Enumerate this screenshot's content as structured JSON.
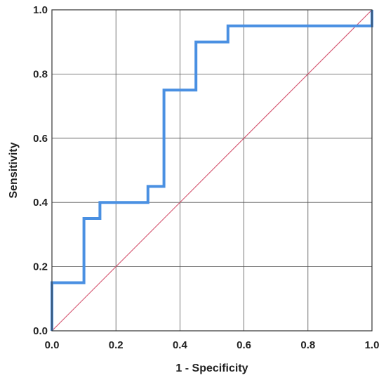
{
  "chart_data": {
    "type": "line",
    "title": "",
    "xlabel": "1 - Specificity",
    "ylabel": "Sensitivity",
    "xlim": [
      0,
      1
    ],
    "ylim": [
      0,
      1
    ],
    "x_ticks": [
      "0.0",
      "0.2",
      "0.4",
      "0.6",
      "0.8",
      "1.0"
    ],
    "y_ticks": [
      "0.0",
      "0.2",
      "0.4",
      "0.6",
      "0.8",
      "1.0"
    ],
    "grid": true,
    "legend": "none",
    "series": [
      {
        "color": "#4a90e2",
        "style": "step",
        "points": [
          [
            0.0,
            0.0
          ],
          [
            0.0,
            0.15
          ],
          [
            0.1,
            0.15
          ],
          [
            0.1,
            0.35
          ],
          [
            0.15,
            0.35
          ],
          [
            0.15,
            0.4
          ],
          [
            0.3,
            0.4
          ],
          [
            0.3,
            0.45
          ],
          [
            0.35,
            0.45
          ],
          [
            0.35,
            0.75
          ],
          [
            0.45,
            0.75
          ],
          [
            0.45,
            0.9
          ],
          [
            0.55,
            0.9
          ],
          [
            0.55,
            0.95
          ],
          [
            1.0,
            0.95
          ],
          [
            1.0,
            1.0
          ]
        ]
      },
      {
        "color": "#d4546f",
        "style": "reference",
        "points": [
          [
            0.0,
            0.0
          ],
          [
            1.0,
            1.0
          ]
        ]
      }
    ]
  }
}
